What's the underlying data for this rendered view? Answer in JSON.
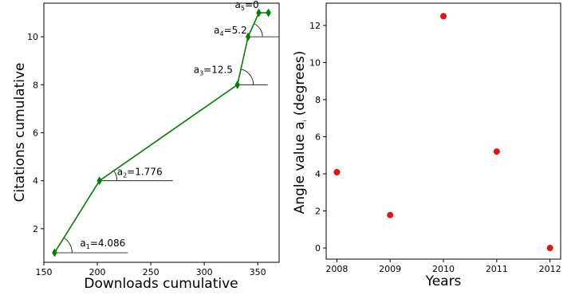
{
  "chart_data": [
    {
      "type": "line",
      "title": "",
      "xlabel": "Downloads cumulative",
      "ylabel": "Citations cumulative",
      "xlim": [
        150,
        370
      ],
      "ylim": [
        0.6,
        11.4
      ],
      "xticks": [
        150,
        200,
        250,
        300,
        350
      ],
      "yticks": [
        2,
        4,
        6,
        8,
        10
      ],
      "grid": false,
      "series": [
        {
          "color": "#008000",
          "marker": "thin-diamond",
          "x": [
            160,
            202,
            331,
            341,
            351,
            360
          ],
          "y": [
            1,
            4,
            8,
            10,
            11,
            11
          ]
        }
      ],
      "annotations": [
        {
          "label_main": "a",
          "label_sub": "1",
          "label_value": "=4.086",
          "x": 160,
          "y": 1
        },
        {
          "label_main": "a",
          "label_sub": "2",
          "label_value": "=1.776",
          "x": 202,
          "y": 4
        },
        {
          "label_main": "a",
          "label_sub": "3",
          "label_value": "=12.5",
          "x": 331,
          "y": 8
        },
        {
          "label_main": "a",
          "label_sub": "4",
          "label_value": "=5.2",
          "x": 341,
          "y": 10
        },
        {
          "label_main": "a",
          "label_sub": "5",
          "label_value": "=0",
          "x": 351,
          "y": 11
        }
      ]
    },
    {
      "type": "scatter",
      "title": "",
      "xlabel": "Years",
      "ylabel_main": "Angle value a",
      "ylabel_sub": "i",
      "ylabel_rest": " (degrees)",
      "xlim": [
        2007.8,
        2012.2
      ],
      "ylim": [
        -0.6,
        13.2
      ],
      "xticks": [
        2008,
        2009,
        2010,
        2011,
        2012
      ],
      "yticks": [
        0,
        2,
        4,
        6,
        8,
        10,
        12
      ],
      "grid": false,
      "series": [
        {
          "color": "#e81010",
          "marker": "circle",
          "x": [
            2008,
            2009,
            2010,
            2011,
            2012
          ],
          "y": [
            4.086,
            1.776,
            12.5,
            5.2,
            0
          ]
        }
      ]
    }
  ]
}
